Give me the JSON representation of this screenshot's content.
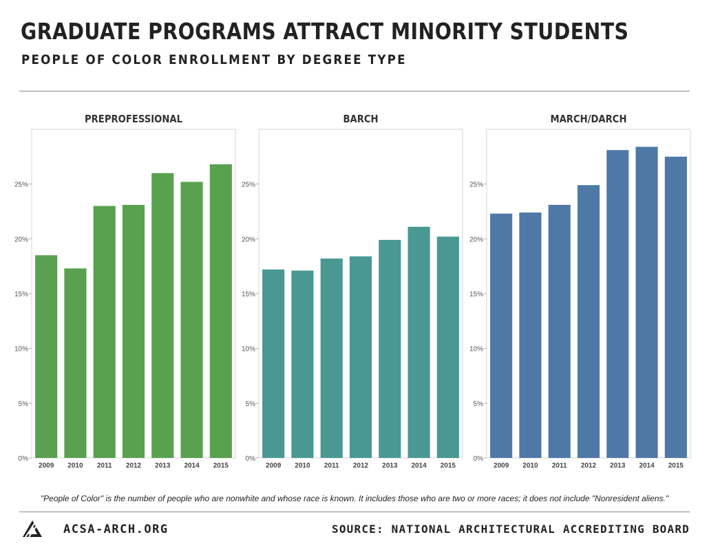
{
  "header": {
    "title": "GRADUATE PROGRAMS ATTRACT MINORITY STUDENTS",
    "subtitle": "PEOPLE OF COLOR ENROLLMENT BY DEGREE TYPE"
  },
  "chart_data": [
    {
      "type": "bar",
      "title": "PREPROFESSIONAL",
      "categories": [
        "2009",
        "2010",
        "2011",
        "2012",
        "2013",
        "2014",
        "2015"
      ],
      "values": [
        18.5,
        17.3,
        23.0,
        23.1,
        26.0,
        25.2,
        26.8
      ],
      "ylim": [
        0,
        30
      ],
      "yticks": [
        0,
        5,
        10,
        15,
        20,
        25
      ],
      "ytick_labels": [
        "0%",
        "5%",
        "10%",
        "15%",
        "20%",
        "25%"
      ],
      "color": "#59a14f",
      "grid": false
    },
    {
      "type": "bar",
      "title": "BARCH",
      "categories": [
        "2009",
        "2010",
        "2011",
        "2012",
        "2013",
        "2014",
        "2015"
      ],
      "values": [
        17.2,
        17.1,
        18.2,
        18.4,
        19.9,
        21.1,
        20.2
      ],
      "ylim": [
        0,
        30
      ],
      "yticks": [
        0,
        5,
        10,
        15,
        20,
        25
      ],
      "ytick_labels": [
        "0%",
        "5%",
        "10%",
        "15%",
        "20%",
        "25%"
      ],
      "color": "#499894",
      "grid": false
    },
    {
      "type": "bar",
      "title": "MARCH/DARCH",
      "categories": [
        "2009",
        "2010",
        "2011",
        "2012",
        "2013",
        "2014",
        "2015"
      ],
      "values": [
        22.3,
        22.4,
        23.1,
        24.9,
        28.1,
        28.4,
        27.5
      ],
      "ylim": [
        0,
        30
      ],
      "yticks": [
        0,
        5,
        10,
        15,
        20,
        25
      ],
      "ytick_labels": [
        "0%",
        "5%",
        "10%",
        "15%",
        "20%",
        "25%"
      ],
      "color": "#4e79a7",
      "grid": false
    }
  ],
  "footer": {
    "footnote": "\"People of Color\" is the number of people who are nonwhite and whose race is known. It includes those who are two or more races; it does not include \"Nonresident aliens.\"",
    "site": "ACSA-ARCH.ORG",
    "source": "SOURCE: NATIONAL ARCHITECTURAL ACCREDITING BOARD",
    "logo_icon": "acsa-triangle-logo-icon"
  }
}
